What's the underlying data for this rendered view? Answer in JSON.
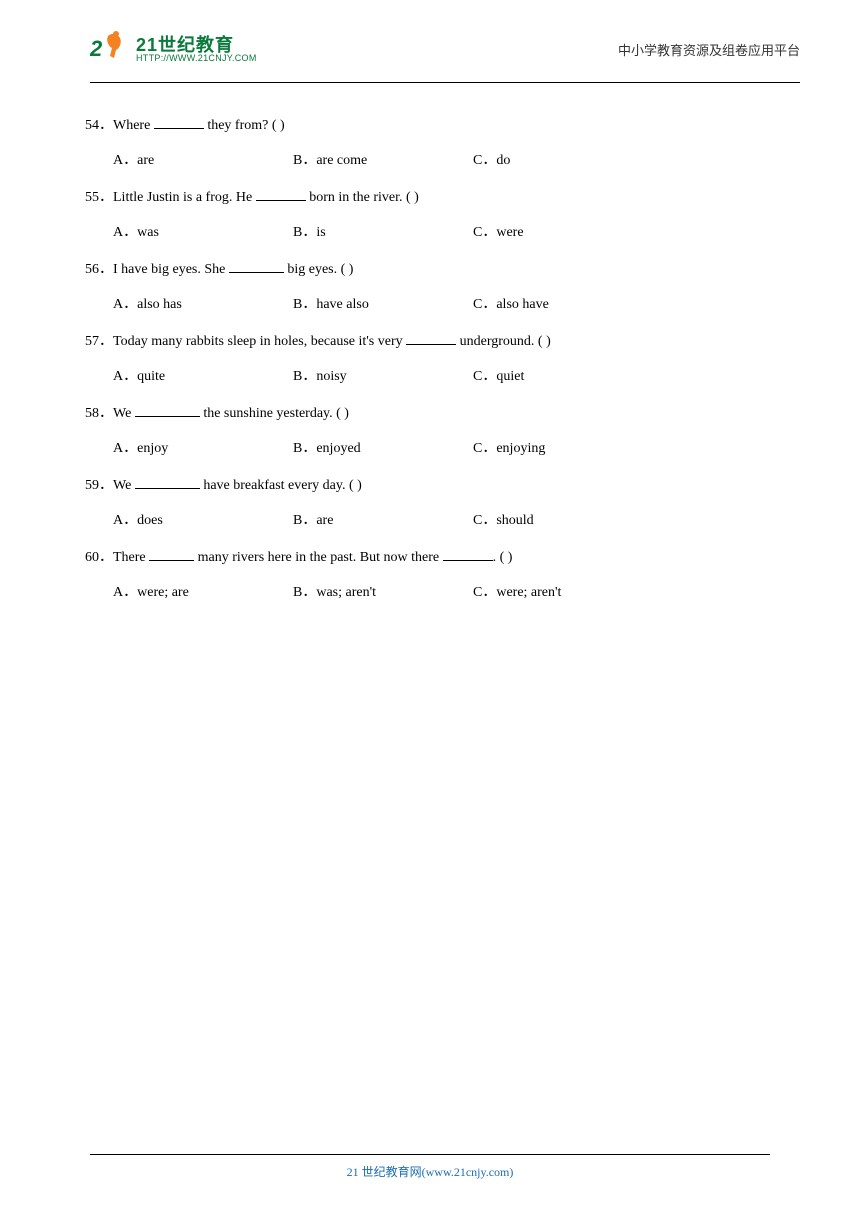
{
  "header": {
    "logo_cn": "21世纪教育",
    "logo_en": "HTTP://WWW.21CNJY.COM",
    "right_text": "中小学教育资源及组卷应用平台"
  },
  "questions": [
    {
      "num": "54．",
      "pre": "Where ",
      "blank_w": "w50",
      "post": " they from? (    )",
      "opts": [
        {
          "label": "A．",
          "text": "are"
        },
        {
          "label": "B．",
          "text": "are come"
        },
        {
          "label": "C．",
          "text": "do"
        }
      ]
    },
    {
      "num": "55．",
      "pre": "Little Justin is a frog. He ",
      "blank_w": "w50",
      "post": " born in the river. (    )",
      "opts": [
        {
          "label": "A．",
          "text": "was"
        },
        {
          "label": "B．",
          "text": "is"
        },
        {
          "label": "C．",
          "text": "were"
        }
      ]
    },
    {
      "num": "56．",
      "pre": "I have big eyes. She ",
      "blank_w": "w55",
      "post": " big eyes. (       )",
      "opts": [
        {
          "label": "A．",
          "text": "also has"
        },
        {
          "label": "B．",
          "text": "have also"
        },
        {
          "label": "C．",
          "text": "also have"
        }
      ]
    },
    {
      "num": "57．",
      "pre": "Today many rabbits sleep in holes, because it's very ",
      "blank_w": "w50",
      "post": " underground. (    )",
      "opts": [
        {
          "label": "A．",
          "text": "quite"
        },
        {
          "label": "B．",
          "text": "noisy"
        },
        {
          "label": "C．",
          "text": "quiet"
        }
      ]
    },
    {
      "num": "58．",
      "pre": "We ",
      "blank_w": "w65",
      "post": " the sunshine yesterday. (      )",
      "opts": [
        {
          "label": "A．",
          "text": "enjoy"
        },
        {
          "label": "B．",
          "text": "enjoyed"
        },
        {
          "label": "C．",
          "text": "enjoying"
        }
      ]
    },
    {
      "num": "59．",
      "pre": "We ",
      "blank_w": "w65",
      "post": " have breakfast every day. (    )",
      "opts": [
        {
          "label": "A．",
          "text": "does"
        },
        {
          "label": "B．",
          "text": "are"
        },
        {
          "label": "C．",
          "text": "should"
        }
      ]
    },
    {
      "num": "60．",
      "pre": "There ",
      "blank_w": "w45",
      "mid": " many rivers here in the past. But now there ",
      "blank2_w": "w50",
      "post": ". (    )",
      "opts": [
        {
          "label": "A．",
          "text": "were; are"
        },
        {
          "label": "B．",
          "text": "was; aren't"
        },
        {
          "label": "C．",
          "text": "were; aren't"
        }
      ]
    }
  ],
  "footer": {
    "text": "21 世纪教育网(www.21cnjy.com)"
  },
  "colors": {
    "logo_green": "#0a7a3a",
    "logo_orange": "#f58220",
    "footer_blue": "#1a6db5",
    "text": "#000000",
    "bg": "#ffffff"
  }
}
